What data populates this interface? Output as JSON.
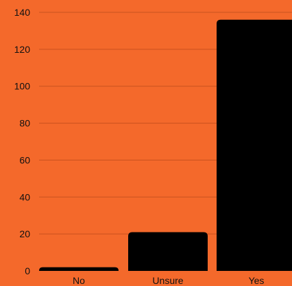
{
  "chart_data": {
    "type": "bar",
    "categories": [
      "No",
      "Unsure",
      "Yes"
    ],
    "values": [
      2,
      21,
      136
    ],
    "yticks": [
      0,
      20,
      40,
      60,
      80,
      100,
      120,
      140
    ],
    "ylim": [
      0,
      140
    ],
    "grid": true,
    "legend": "none",
    "title": "",
    "xlabel": "",
    "ylabel": "",
    "colors": {
      "background": "#f4692b",
      "bar": "#000000",
      "grid": "#c9521f",
      "text": "#111111"
    }
  }
}
